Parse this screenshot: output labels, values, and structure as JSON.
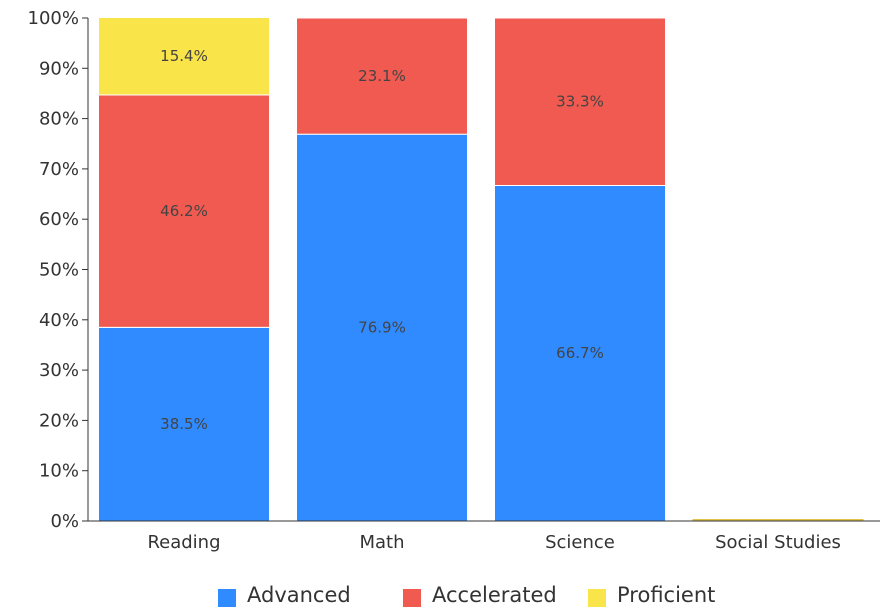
{
  "chart_data": {
    "type": "bar",
    "stacked": true,
    "categories": [
      "Reading",
      "Math",
      "Science",
      "Social Studies"
    ],
    "series": [
      {
        "name": "Advanced",
        "color": "#2f8bff",
        "values": [
          38.5,
          76.9,
          66.7,
          0
        ]
      },
      {
        "name": "Accelerated",
        "color": "#f05a50",
        "values": [
          46.2,
          23.1,
          33.3,
          0
        ]
      },
      {
        "name": "Proficient",
        "color": "#f9e44a",
        "values": [
          15.4,
          0,
          0,
          0
        ]
      }
    ],
    "data_labels": [
      [
        "38.5%",
        "76.9%",
        "66.7%",
        ""
      ],
      [
        "46.2%",
        "23.1%",
        "33.3%",
        ""
      ],
      [
        "15.4%",
        "",
        "",
        ""
      ]
    ],
    "yticks": [
      "0%",
      "10%",
      "20%",
      "30%",
      "40%",
      "50%",
      "60%",
      "70%",
      "80%",
      "90%",
      "100%"
    ],
    "ylim": [
      0,
      100
    ],
    "grid": false,
    "legend_position": "bottom-center",
    "title": "",
    "xlabel": "",
    "ylabel": ""
  }
}
